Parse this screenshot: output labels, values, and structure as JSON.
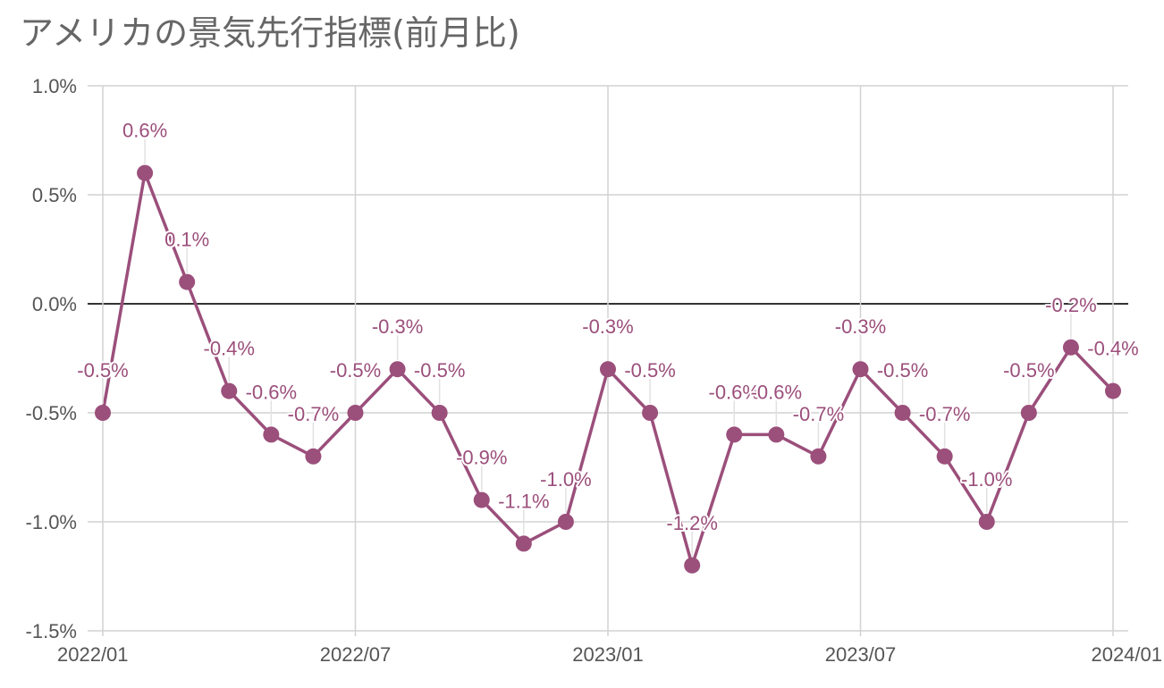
{
  "chart_data": {
    "type": "line",
    "title": "アメリカの景気先行指標(前月比)",
    "xlabel": "",
    "ylabel": "",
    "ylim": [
      -1.5,
      1.0
    ],
    "y_ticks": [
      1.0,
      0.5,
      0.0,
      -0.5,
      -1.0,
      -1.5
    ],
    "y_tick_labels": [
      "1.0%",
      "0.5%",
      "0.0%",
      "-0.5%",
      "-1.0%",
      "-1.5%"
    ],
    "x_tick_labels": [
      "2022/01",
      "2022/07",
      "2023/01",
      "2023/07",
      "2024/01"
    ],
    "x_tick_months": [
      "2022-01",
      "2022-07",
      "2023-01",
      "2023-07",
      "2024-01"
    ],
    "x_range": [
      "2022-01",
      "2024-01"
    ],
    "grid": true,
    "zero_line": true,
    "line_color": "#9b4f7b",
    "series": [
      {
        "x": [
          "2022-01",
          "2022-02",
          "2022-03",
          "2022-04",
          "2022-05",
          "2022-06",
          "2022-07",
          "2022-08",
          "2022-09",
          "2022-10",
          "2022-11",
          "2022-12",
          "2023-01",
          "2023-02",
          "2023-03",
          "2023-04",
          "2023-05",
          "2023-06",
          "2023-07",
          "2023-08",
          "2023-09",
          "2023-10",
          "2023-11",
          "2023-12",
          "2024-01"
        ],
        "values": [
          -0.5,
          0.6,
          0.1,
          -0.4,
          -0.6,
          -0.7,
          -0.5,
          -0.3,
          -0.5,
          -0.9,
          -1.1,
          -1.0,
          -0.3,
          -0.5,
          -1.2,
          -0.6,
          -0.6,
          -0.7,
          -0.3,
          -0.5,
          -0.7,
          -1.0,
          -0.5,
          -0.2,
          -0.4
        ],
        "labels": [
          "-0.5%",
          "0.6%",
          "0.1%",
          "-0.4%",
          "-0.6%",
          "-0.7%",
          "-0.5%",
          "-0.3%",
          "-0.5%",
          "-0.9%",
          "-1.1%",
          "-1.0%",
          "-0.3%",
          "-0.5%",
          "-1.2%",
          "-0.6%",
          "-0.6%",
          "-0.7%",
          "-0.3%",
          "-0.5%",
          "-0.7%",
          "-1.0%",
          "-0.5%",
          "-0.2%",
          "-0.4%"
        ]
      }
    ]
  }
}
